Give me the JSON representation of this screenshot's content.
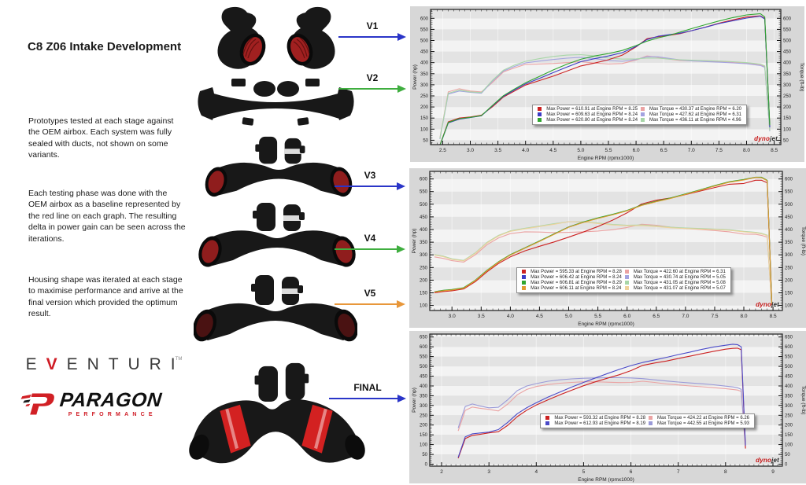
{
  "title": "C8 Z06 Intake Development",
  "paragraphs": {
    "p1": "Prototypes tested at each stage against the OEM airbox. Each system was fully sealed with ducts, not shown on some variants.",
    "p2": "Each testing phase was done with the OEM airbox as a baseline represented by the red line on each graph. The resulting delta in power gain can be seen across the iterations.",
    "p3": "Housing shape was iterated at each stage to maximise performance and arrive at the final version which provided the optimum result."
  },
  "branding": {
    "eventuri_letters": [
      "E",
      "V",
      "E",
      "N",
      "T",
      "U",
      "R",
      "I"
    ],
    "eventuri_tm": "TM",
    "paragon_word": "PARAGON",
    "paragon_sub": "PERFORMANCE"
  },
  "stages": [
    {
      "label": "V1",
      "arrow_color": "#2a35c8"
    },
    {
      "label": "V2",
      "arrow_color": "#3fae3f"
    },
    {
      "label": "V3",
      "arrow_color": "#2a35c8"
    },
    {
      "label": "V4",
      "arrow_color": "#3fae3f"
    },
    {
      "label": "V5",
      "arrow_color": "#e8973a"
    },
    {
      "label": "FINAL",
      "arrow_color": "#2a35c8"
    }
  ],
  "watermark": {
    "part1": "dyno",
    "part2": "jet"
  },
  "chart_data": [
    {
      "type": "line",
      "title": "V1 / V2 vs OEM baseline dyno",
      "xlabel": "Engine RPM (rpmx1000)",
      "ylabel_left": "Power (hp)",
      "ylabel_right": "Torque (ft-lb)",
      "xlim": [
        2.28,
        8.62
      ],
      "ylim": [
        30,
        640
      ],
      "xticks": [
        2.5,
        3.0,
        3.5,
        4.0,
        4.5,
        5.0,
        5.5,
        6.0,
        6.5,
        7.0,
        7.5,
        8.0,
        8.5
      ],
      "yticks": [
        50,
        100,
        150,
        200,
        250,
        300,
        350,
        400,
        450,
        500,
        550,
        600
      ],
      "xtick_decimals": 1,
      "legend_pos": {
        "left": "31%",
        "top": "63%"
      },
      "x": [
        2.45,
        2.6,
        2.8,
        3.0,
        3.2,
        3.4,
        3.6,
        3.8,
        4.0,
        4.25,
        4.5,
        4.75,
        5.0,
        5.25,
        5.5,
        5.75,
        6.0,
        6.2,
        6.4,
        6.6,
        6.8,
        7.0,
        7.25,
        7.5,
        7.75,
        8.0,
        8.25,
        8.33,
        8.42
      ],
      "series": [
        {
          "name": "OEM",
          "power_color": "#cc2222",
          "torque_color": "#eba3a3",
          "power": [
            28,
            133,
            150,
            155,
            163,
            201,
            245,
            272,
            299,
            319,
            339,
            362,
            385,
            398,
            413,
            434,
            471,
            508,
            517,
            523,
            531,
            544,
            560,
            578,
            593,
            606,
            611,
            600,
            112
          ],
          "torque": [
            60,
            268,
            282,
            272,
            268,
            310,
            358,
            376,
            392,
            394,
            396,
            400,
            404,
            398,
            394,
            396,
            412,
            430,
            424,
            416,
            410,
            408,
            406,
            405,
            402,
            398,
            389,
            382,
            95
          ],
          "legend_power": "Max Power = 610.91 at Engine RPM = 8.25",
          "legend_torque": "Max Torque = 430.37 at Engine RPM = 6.20"
        },
        {
          "name": "V1",
          "power_color": "#3b3bc4",
          "torque_color": "#a3a3e0",
          "power": [
            26,
            128,
            145,
            152,
            160,
            205,
            248,
            277,
            304,
            329,
            355,
            380,
            404,
            418,
            430,
            445,
            473,
            504,
            519,
            526,
            533,
            544,
            559,
            576,
            589,
            601,
            610,
            597,
            108
          ],
          "torque": [
            55,
            258,
            272,
            266,
            262,
            316,
            362,
            383,
            399,
            407,
            414,
            420,
            424,
            418,
            410,
            406,
            414,
            427,
            426,
            419,
            412,
            408,
            405,
            402,
            399,
            395,
            387,
            379,
            90
          ],
          "legend_power": "Max Power = 609.63 at Engine RPM = 8.24",
          "legend_torque": "Max Torque = 427.62 at Engine RPM = 6.31"
        },
        {
          "name": "V2",
          "power_color": "#2fa52f",
          "torque_color": "#a8d6a8",
          "power": [
            27,
            130,
            147,
            153,
            161,
            207,
            251,
            281,
            309,
            338,
            367,
            393,
            415,
            430,
            441,
            455,
            477,
            497,
            512,
            523,
            538,
            553,
            571,
            588,
            603,
            615,
            621,
            606,
            118
          ],
          "torque": [
            58,
            262,
            276,
            268,
            265,
            320,
            366,
            389,
            406,
            418,
            428,
            434,
            436,
            430,
            421,
            416,
            417,
            421,
            420,
            416,
            413,
            411,
            409,
            407,
            404,
            400,
            394,
            385,
            93
          ],
          "legend_power": "Max Power = 620.80 at Engine RPM = 8.24",
          "legend_torque": "Max Torque = 436.11 at Engine RPM = 4.96"
        }
      ]
    },
    {
      "type": "line",
      "title": "V3 / V4 / V5 vs OEM baseline dyno",
      "xlabel": "Engine RPM (rpmx1000)",
      "ylabel_left": "Power (hp)",
      "ylabel_right": "Torque (ft-lb)",
      "xlim": [
        2.62,
        8.66
      ],
      "ylim": [
        80,
        630
      ],
      "xticks": [
        3.0,
        3.5,
        4.0,
        4.5,
        5.0,
        5.5,
        6.0,
        6.5,
        7.0,
        7.5,
        8.0,
        8.5
      ],
      "yticks": [
        100,
        150,
        200,
        250,
        300,
        350,
        400,
        450,
        500,
        550,
        600
      ],
      "xtick_decimals": 1,
      "legend_pos": {
        "left": "27%",
        "top": "62%"
      },
      "x": [
        2.7,
        2.85,
        3.0,
        3.2,
        3.4,
        3.6,
        3.8,
        4.0,
        4.25,
        4.5,
        4.75,
        5.0,
        5.25,
        5.5,
        5.75,
        6.0,
        6.25,
        6.5,
        6.75,
        7.0,
        7.25,
        7.5,
        7.75,
        8.0,
        8.2,
        8.3,
        8.4,
        8.48
      ],
      "series": [
        {
          "name": "OEM",
          "power_color": "#cc2222",
          "torque_color": "#eba3a3",
          "power": [
            150,
            155,
            158,
            165,
            194,
            233,
            266,
            292,
            316,
            334,
            351,
            370,
            390,
            412,
            437,
            466,
            501,
            516,
            525,
            538,
            552,
            566,
            579,
            582,
            595,
            595,
            585,
            102
          ],
          "torque": [
            292,
            286,
            277,
            271,
            300,
            340,
            367,
            384,
            391,
            390,
            388,
            389,
            391,
            394,
            399,
            408,
            421,
            417,
            409,
            404,
            400,
            396,
            391,
            382,
            381,
            377,
            370,
            90
          ],
          "legend_power": "Max Power = 595.33 at Engine RPM = 8.28",
          "legend_torque": "Max Torque = 422.60 at Engine RPM = 6.31"
        },
        {
          "name": "V3",
          "power_color": "#3b3bc4",
          "torque_color": "#a3a3e0",
          "power": [
            154,
            159,
            162,
            169,
            199,
            238,
            272,
            300,
            327,
            354,
            382,
            410,
            429,
            445,
            459,
            475,
            496,
            511,
            524,
            540,
            556,
            573,
            588,
            597,
            606,
            606,
            594,
            108
          ],
          "torque": [
            300,
            294,
            283,
            277,
            307,
            348,
            376,
            394,
            404,
            413,
            422,
            431,
            430,
            425,
            419,
            416,
            417,
            413,
            408,
            405,
            403,
            401,
            398,
            392,
            388,
            384,
            377,
            95
          ],
          "legend_power": "Max Power = 606.42 at Engine RPM = 8.24",
          "legend_torque": "Max Torque = 430.74 at Engine RPM = 5.05"
        },
        {
          "name": "V4",
          "power_color": "#2fa52f",
          "torque_color": "#a8d6a8",
          "power": [
            154,
            160,
            163,
            170,
            200,
            239,
            273,
            301,
            328,
            355,
            383,
            410,
            430,
            446,
            460,
            476,
            497,
            512,
            525,
            541,
            557,
            574,
            589,
            598,
            607,
            607,
            595,
            109
          ],
          "torque": [
            301,
            295,
            284,
            278,
            308,
            349,
            377,
            395,
            405,
            414,
            423,
            431,
            431,
            426,
            420,
            417,
            418,
            414,
            409,
            406,
            404,
            402,
            399,
            393,
            389,
            385,
            378,
            96
          ],
          "legend_power": "Max Power = 606.81 at Engine RPM = 8.29",
          "legend_torque": "Max Torque = 431.05 at Engine RPM = 5.08"
        },
        {
          "name": "V5",
          "power_color": "#e09a30",
          "torque_color": "#efd29b",
          "power": [
            153,
            158,
            161,
            168,
            198,
            237,
            271,
            299,
            326,
            353,
            381,
            409,
            428,
            444,
            458,
            474,
            495,
            510,
            523,
            539,
            555,
            572,
            587,
            596,
            606,
            605,
            593,
            107
          ],
          "torque": [
            299,
            293,
            282,
            276,
            306,
            347,
            375,
            393,
            403,
            412,
            421,
            431,
            430,
            424,
            418,
            415,
            416,
            412,
            407,
            404,
            402,
            400,
            397,
            391,
            387,
            383,
            376,
            94
          ],
          "legend_power": "Max Power = 606.11 at Engine RPM = 8.24",
          "legend_torque": "Max Torque = 431.07 at Engine RPM = 5.07"
        }
      ]
    },
    {
      "type": "line",
      "title": "FINAL vs OEM baseline dyno",
      "xlabel": "Engine RPM (rpmx1000)",
      "ylabel_left": "Power (hp)",
      "ylabel_right": "Torque (ft-lb)",
      "xlim": [
        1.75,
        9.2
      ],
      "ylim": [
        -10,
        665
      ],
      "xticks": [
        2,
        3,
        4,
        5,
        6,
        7,
        8,
        9
      ],
      "yticks": [
        0,
        50,
        100,
        150,
        200,
        250,
        300,
        350,
        400,
        450,
        500,
        550,
        600,
        650
      ],
      "xtick_decimals": 0,
      "legend_pos": {
        "left": "33%",
        "top": "54%"
      },
      "x": [
        2.35,
        2.5,
        2.65,
        2.8,
        3.0,
        3.2,
        3.4,
        3.6,
        3.8,
        4.0,
        4.25,
        4.5,
        4.75,
        5.0,
        5.25,
        5.5,
        5.75,
        6.0,
        6.25,
        6.5,
        6.75,
        7.0,
        7.25,
        7.5,
        7.75,
        8.0,
        8.15,
        8.25,
        8.33,
        8.42
      ],
      "series": [
        {
          "name": "OEM",
          "power_color": "#cc2222",
          "torque_color": "#eba3a3",
          "power": [
            30,
            131,
            147,
            152,
            160,
            166,
            199,
            243,
            276,
            302,
            329,
            355,
            378,
            401,
            421,
            439,
            457,
            478,
            505,
            517,
            527,
            540,
            552,
            565,
            577,
            588,
            592,
            593,
            585,
            80
          ],
          "torque": [
            170,
            275,
            292,
            286,
            280,
            272,
            308,
            355,
            382,
            397,
            407,
            414,
            418,
            421,
            421,
            419,
            417,
            418,
            424,
            418,
            410,
            405,
            400,
            396,
            391,
            386,
            382,
            379,
            372,
            82
          ],
          "legend_power": "Max Power = 593.32 at Engine RPM = 8.28",
          "legend_torque": "Max Torque = 424.22 at Engine RPM = 6.26"
        },
        {
          "name": "FINAL",
          "power_color": "#4a4ac8",
          "torque_color": "#9a9ad8",
          "power": [
            35,
            140,
            155,
            159,
            164,
            177,
            214,
            258,
            289,
            314,
            343,
            369,
            394,
            418,
            441,
            463,
            484,
            504,
            520,
            533,
            546,
            560,
            573,
            587,
            599,
            608,
            613,
            611,
            600,
            95
          ],
          "torque": [
            185,
            295,
            308,
            298,
            288,
            291,
            330,
            376,
            400,
            412,
            424,
            431,
            436,
            439,
            441,
            442,
            442,
            441,
            437,
            431,
            425,
            420,
            415,
            411,
            406,
            399,
            395,
            391,
            383,
            88
          ],
          "legend_power": "Max Power = 612.93 at Engine RPM = 8.19",
          "legend_torque": "Max Torque = 442.55 at Engine RPM = 5.93"
        }
      ]
    }
  ]
}
